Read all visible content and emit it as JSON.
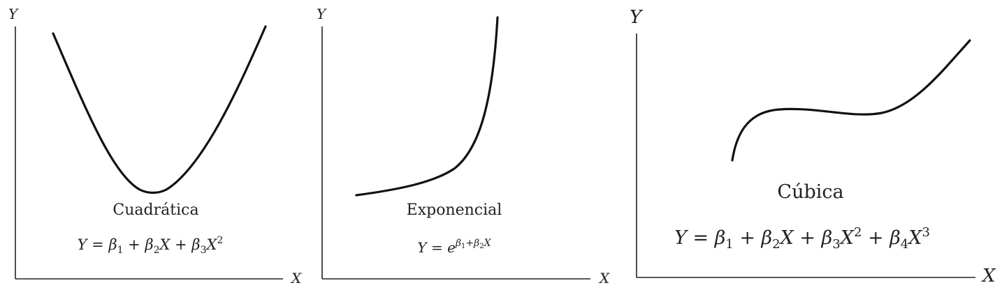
{
  "panels": [
    {
      "id": "quadratic",
      "y_axis_label": "Y",
      "x_axis_label": "X",
      "name": "Cuadrática",
      "formula": {
        "lhs": "Y = ",
        "b1": "β",
        "b1_sub": "1",
        "plus1": " + ",
        "b2": "β",
        "b2_sub": "2",
        "x1": "X",
        "plus2": " + ",
        "b3": "β",
        "b3_sub": "3",
        "x2": "X",
        "x2_sup": "2"
      }
    },
    {
      "id": "exponential",
      "y_axis_label": "Y",
      "x_axis_label": "X",
      "name": "Exponencial",
      "formula": {
        "lhs": "Y = ",
        "base": "e",
        "e_b1": "β",
        "e_b1_sub": "1",
        "e_plus": "+",
        "e_b2": "β",
        "e_b2_sub": "2",
        "e_x": "X"
      }
    },
    {
      "id": "cubic",
      "y_axis_label": "Y",
      "x_axis_label": "X",
      "name": "Cúbica",
      "formula": {
        "lhs": "Y = ",
        "b1": "β",
        "b1_sub": "1",
        "plus1": " + ",
        "b2": "β",
        "b2_sub": "2",
        "x1": "X",
        "plus2": " + ",
        "b3": "β",
        "b3_sub": "3",
        "x2": "X",
        "x2_sup": "2",
        "plus3": " + ",
        "b4": "β",
        "b4_sub": "4",
        "x3": "X",
        "x3_sup": "3"
      }
    }
  ]
}
